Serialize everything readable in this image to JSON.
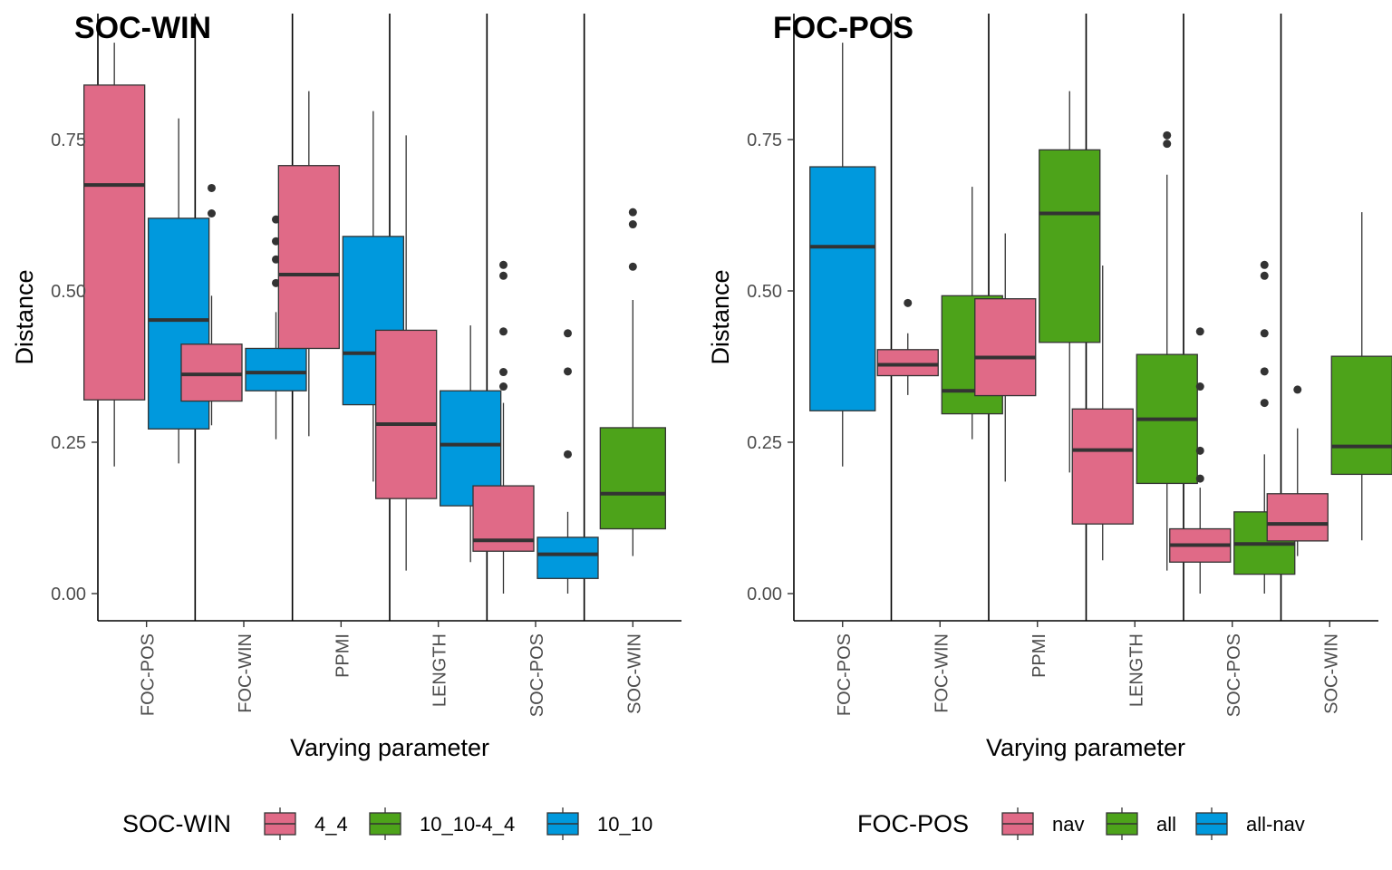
{
  "chart_data": [
    {
      "type": "box",
      "title": "SOC-WIN",
      "xlabel": "Varying parameter",
      "ylabel": "Distance",
      "ylim": [
        -0.04,
        0.95
      ],
      "yticks": [
        0,
        0.25,
        0.5,
        0.75
      ],
      "ytick_labels": [
        "0.00",
        "0.25",
        "0.50",
        "0.75"
      ],
      "categories": [
        "FOC-POS",
        "FOC-WIN",
        "PPMI",
        "LENGTH",
        "SOC-POS",
        "SOC-WIN"
      ],
      "legend": {
        "title": "SOC-WIN",
        "placement": "bottom",
        "entries": [
          {
            "name": "4_4",
            "color": "#E06A87"
          },
          {
            "name": "10_10-4_4",
            "color": "#4DA31A"
          },
          {
            "name": "10_10",
            "color": "#0099DD"
          }
        ]
      },
      "boxes": [
        {
          "category": "FOC-POS",
          "group": "4_4",
          "min": 0.21,
          "q1": 0.32,
          "median": 0.675,
          "q3": 0.84,
          "max": 0.91,
          "outliers": []
        },
        {
          "category": "FOC-POS",
          "group": "10_10",
          "min": 0.215,
          "q1": 0.272,
          "median": 0.452,
          "q3": 0.62,
          "max": 0.785,
          "outliers": []
        },
        {
          "category": "FOC-WIN",
          "group": "4_4",
          "min": 0.278,
          "q1": 0.318,
          "median": 0.362,
          "q3": 0.412,
          "max": 0.492,
          "outliers": [
            0.628,
            0.67
          ]
        },
        {
          "category": "FOC-WIN",
          "group": "10_10",
          "min": 0.255,
          "q1": 0.335,
          "median": 0.365,
          "q3": 0.405,
          "max": 0.465,
          "outliers": [
            0.513,
            0.552,
            0.582,
            0.618
          ]
        },
        {
          "category": "PPMI",
          "group": "4_4",
          "min": 0.26,
          "q1": 0.405,
          "median": 0.527,
          "q3": 0.707,
          "max": 0.83,
          "outliers": []
        },
        {
          "category": "PPMI",
          "group": "10_10",
          "min": 0.185,
          "q1": 0.312,
          "median": 0.397,
          "q3": 0.59,
          "max": 0.797,
          "outliers": []
        },
        {
          "category": "LENGTH",
          "group": "4_4",
          "min": 0.038,
          "q1": 0.157,
          "median": 0.28,
          "q3": 0.435,
          "max": 0.757,
          "outliers": []
        },
        {
          "category": "LENGTH",
          "group": "10_10",
          "min": 0.052,
          "q1": 0.145,
          "median": 0.246,
          "q3": 0.335,
          "max": 0.443,
          "outliers": []
        },
        {
          "category": "SOC-POS",
          "group": "4_4",
          "min": 0.0,
          "q1": 0.07,
          "median": 0.088,
          "q3": 0.178,
          "max": 0.315,
          "outliers": [
            0.342,
            0.366,
            0.433,
            0.525,
            0.543
          ]
        },
        {
          "category": "SOC-POS",
          "group": "10_10",
          "min": 0.0,
          "q1": 0.025,
          "median": 0.065,
          "q3": 0.093,
          "max": 0.135,
          "outliers": [
            0.23,
            0.367,
            0.43
          ]
        },
        {
          "category": "SOC-WIN",
          "group": "10_10-4_4",
          "min": 0.062,
          "q1": 0.107,
          "median": 0.165,
          "q3": 0.274,
          "max": 0.485,
          "outliers": [
            0.54,
            0.61,
            0.63
          ]
        }
      ]
    },
    {
      "type": "box",
      "title": "FOC-POS",
      "xlabel": "Varying parameter",
      "ylabel": "Distance",
      "ylim": [
        -0.04,
        0.95
      ],
      "yticks": [
        0,
        0.25,
        0.5,
        0.75
      ],
      "ytick_labels": [
        "0.00",
        "0.25",
        "0.50",
        "0.75"
      ],
      "categories": [
        "FOC-POS",
        "FOC-WIN",
        "PPMI",
        "LENGTH",
        "SOC-POS",
        "SOC-WIN"
      ],
      "legend": {
        "title": "FOC-POS",
        "placement": "bottom",
        "entries": [
          {
            "name": "nav",
            "color": "#E06A87"
          },
          {
            "name": "all",
            "color": "#4DA31A"
          },
          {
            "name": "all-nav",
            "color": "#0099DD"
          }
        ]
      },
      "boxes": [
        {
          "category": "FOC-POS",
          "group": "all-nav",
          "min": 0.21,
          "q1": 0.302,
          "median": 0.573,
          "q3": 0.705,
          "max": 0.91,
          "outliers": []
        },
        {
          "category": "FOC-WIN",
          "group": "nav",
          "min": 0.328,
          "q1": 0.36,
          "median": 0.378,
          "q3": 0.403,
          "max": 0.43,
          "outliers": [
            0.48
          ]
        },
        {
          "category": "FOC-WIN",
          "group": "all",
          "min": 0.255,
          "q1": 0.297,
          "median": 0.335,
          "q3": 0.492,
          "max": 0.672,
          "outliers": []
        },
        {
          "category": "PPMI",
          "group": "nav",
          "min": 0.185,
          "q1": 0.327,
          "median": 0.39,
          "q3": 0.487,
          "max": 0.595,
          "outliers": []
        },
        {
          "category": "PPMI",
          "group": "all",
          "min": 0.2,
          "q1": 0.415,
          "median": 0.628,
          "q3": 0.733,
          "max": 0.83,
          "outliers": []
        },
        {
          "category": "LENGTH",
          "group": "nav",
          "min": 0.055,
          "q1": 0.115,
          "median": 0.237,
          "q3": 0.305,
          "max": 0.542,
          "outliers": []
        },
        {
          "category": "LENGTH",
          "group": "all",
          "min": 0.038,
          "q1": 0.182,
          "median": 0.288,
          "q3": 0.395,
          "max": 0.692,
          "outliers": [
            0.743,
            0.757
          ]
        },
        {
          "category": "SOC-POS",
          "group": "nav",
          "min": 0.0,
          "q1": 0.052,
          "median": 0.08,
          "q3": 0.107,
          "max": 0.175,
          "outliers": [
            0.19,
            0.236,
            0.342,
            0.433
          ]
        },
        {
          "category": "SOC-POS",
          "group": "all",
          "min": 0.0,
          "q1": 0.032,
          "median": 0.082,
          "q3": 0.135,
          "max": 0.23,
          "outliers": [
            0.315,
            0.367,
            0.43,
            0.525,
            0.543
          ]
        },
        {
          "category": "SOC-WIN",
          "group": "nav",
          "min": 0.062,
          "q1": 0.087,
          "median": 0.115,
          "q3": 0.165,
          "max": 0.273,
          "outliers": [
            0.337
          ]
        },
        {
          "category": "SOC-WIN",
          "group": "all",
          "min": 0.088,
          "q1": 0.197,
          "median": 0.243,
          "q3": 0.392,
          "max": 0.63,
          "outliers": []
        }
      ]
    }
  ]
}
